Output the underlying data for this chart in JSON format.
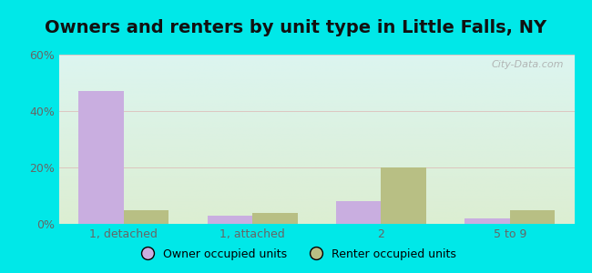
{
  "title": "Owners and renters by unit type in Little Falls, NY",
  "categories": [
    "1, detached",
    "1, attached",
    "2",
    "5 to 9"
  ],
  "owner_values": [
    47,
    3,
    8,
    2
  ],
  "renter_values": [
    5,
    4,
    20,
    5
  ],
  "owner_color": "#c9aee0",
  "renter_color": "#b8bf84",
  "ylim": [
    0,
    60
  ],
  "yticks": [
    0,
    20,
    40,
    60
  ],
  "ytick_labels": [
    "0%",
    "20%",
    "40%",
    "60%"
  ],
  "bar_width": 0.35,
  "outer_bg": "#00e8e8",
  "legend_owner": "Owner occupied units",
  "legend_renter": "Renter occupied units",
  "watermark": "City-Data.com",
  "title_fontsize": 14,
  "tick_fontsize": 9
}
